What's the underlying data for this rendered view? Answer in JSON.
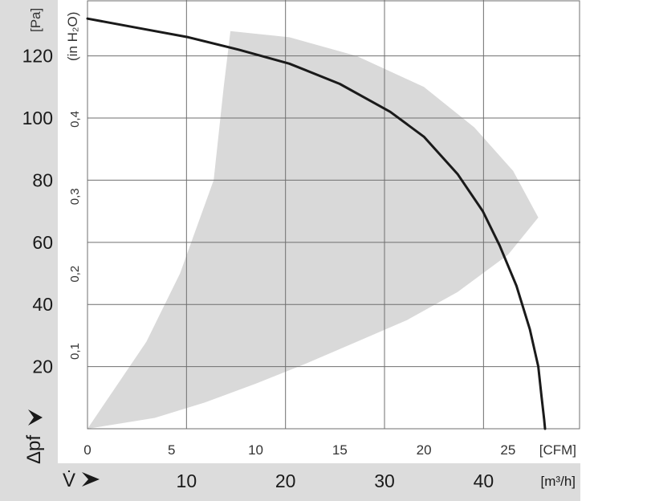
{
  "chart_data": {
    "type": "line",
    "title": "",
    "y_axis_pa": {
      "unit_label": "[Pa]",
      "range": [
        0,
        138
      ],
      "ticks": [
        20,
        40,
        60,
        80,
        100,
        120
      ]
    },
    "y_axis_inh2o": {
      "unit_label": "(in H₂O)",
      "ticks": [
        "0,1",
        "0,2",
        "0,3",
        "0,4"
      ],
      "tick_values": [
        0.1,
        0.2,
        0.3,
        0.4
      ]
    },
    "x_axis_cfm": {
      "unit_label": "[CFM]",
      "range": [
        0,
        29.3
      ],
      "ticks": [
        0,
        5,
        10,
        15,
        20,
        25
      ]
    },
    "x_axis_m3h": {
      "unit_label": "[m³/h]",
      "ticks": [
        10,
        20,
        30,
        40
      ]
    },
    "y_symbol": "Δpf",
    "x_symbol": "V̇",
    "grid": true,
    "series": [
      {
        "x_cfm": [
          0,
          3,
          6,
          9,
          12,
          15,
          18,
          20,
          22,
          23.5,
          24.5,
          25.5,
          26.3,
          26.8,
          27.0,
          27.15,
          27.2
        ],
        "y_pa": [
          132,
          129,
          126,
          122,
          117.5,
          111,
          102,
          94,
          82,
          70,
          59,
          46,
          32,
          20,
          10,
          3,
          0
        ]
      }
    ],
    "operating_area": {
      "x_cfm": [
        0,
        1.5,
        3.5,
        5.5,
        7.5,
        8.1,
        8.5,
        12,
        16,
        20,
        23,
        25.3,
        26.8,
        25.0,
        22,
        19,
        16,
        13,
        10,
        7,
        4,
        0
      ],
      "y_pa": [
        0,
        12,
        28,
        50,
        80,
        110,
        128,
        126,
        120,
        110,
        97,
        83,
        68,
        56,
        44,
        35,
        28,
        21,
        14.5,
        8.5,
        3.5,
        0
      ]
    }
  }
}
